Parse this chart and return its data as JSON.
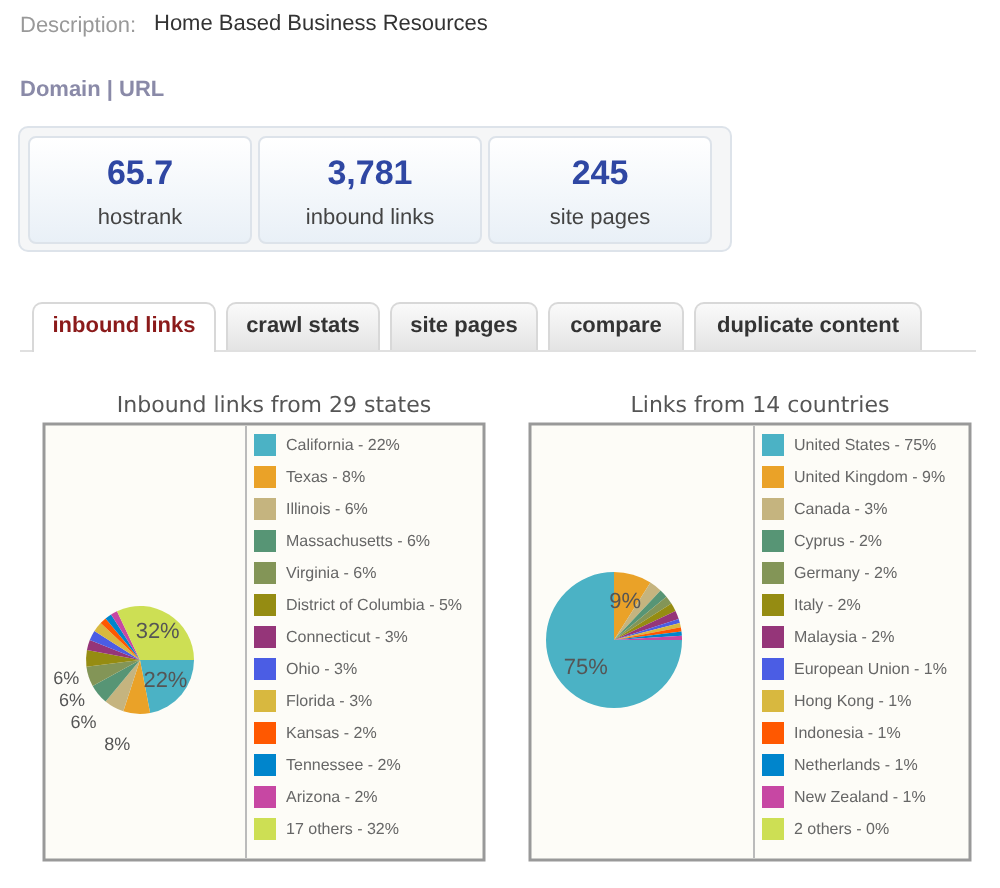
{
  "chart_data": [
    {
      "type": "other",
      "categories": [
        "hostrank",
        "inbound links",
        "site pages"
      ],
      "values": [
        65.7,
        3781,
        245
      ],
      "value_labels": [
        "65.7",
        "3,781",
        "245"
      ],
      "annotations": [
        "Description:",
        "Home Based Business Resources",
        "Domain | URL",
        "inbound links",
        "crawl stats",
        "site pages",
        "compare",
        "duplicate content"
      ]
    },
    {
      "type": "pie",
      "title": "Inbound links from 29 states",
      "legend": "right",
      "categories": [
        "California - 22%",
        "Texas - 8%",
        "Illinois - 6%",
        "Massachusetts - 6%",
        "Virginia - 6%",
        "District of Columbia - 5%",
        "Connecticut - 3%",
        "Ohio - 3%",
        "Florida - 3%",
        "Kansas - 2%",
        "Tennessee - 2%",
        "Arizona - 2%",
        "17 others - 32%"
      ],
      "values": [
        22,
        8,
        6,
        6,
        6,
        5,
        3,
        3,
        3,
        2,
        2,
        2,
        32
      ],
      "colors": [
        "#4bb2c5",
        "#eaa228",
        "#c5b47f",
        "#579575",
        "#839557",
        "#958c12",
        "#953579",
        "#4b5de4",
        "#d8b83f",
        "#ff5800",
        "#0085cc",
        "#c747a3",
        "#cddf54"
      ],
      "value_labels": [
        "22%",
        "8%",
        "6%",
        "6%",
        "6%",
        null,
        null,
        null,
        null,
        null,
        null,
        null,
        "32%"
      ]
    },
    {
      "type": "pie",
      "title": "Links from 14 countries",
      "legend": "right",
      "categories": [
        "United States - 75%",
        "United Kingdom - 9%",
        "Canada - 3%",
        "Cyprus - 2%",
        "Germany - 2%",
        "Italy - 2%",
        "Malaysia - 2%",
        "European Union - 1%",
        "Hong Kong - 1%",
        "Indonesia - 1%",
        "Netherlands - 1%",
        "New Zealand - 1%",
        "2 others - 0%"
      ],
      "values": [
        75,
        9,
        3,
        2,
        2,
        2,
        2,
        1,
        1,
        1,
        1,
        1,
        0
      ],
      "colors": [
        "#4bb2c5",
        "#eaa228",
        "#c5b47f",
        "#579575",
        "#839557",
        "#958c12",
        "#953579",
        "#4b5de4",
        "#d8b83f",
        "#ff5800",
        "#0085cc",
        "#c747a3",
        "#cddf54"
      ],
      "value_labels": [
        "75%",
        "9%",
        null,
        null,
        null,
        null,
        null,
        null,
        null,
        null,
        null,
        null,
        null
      ]
    }
  ]
}
